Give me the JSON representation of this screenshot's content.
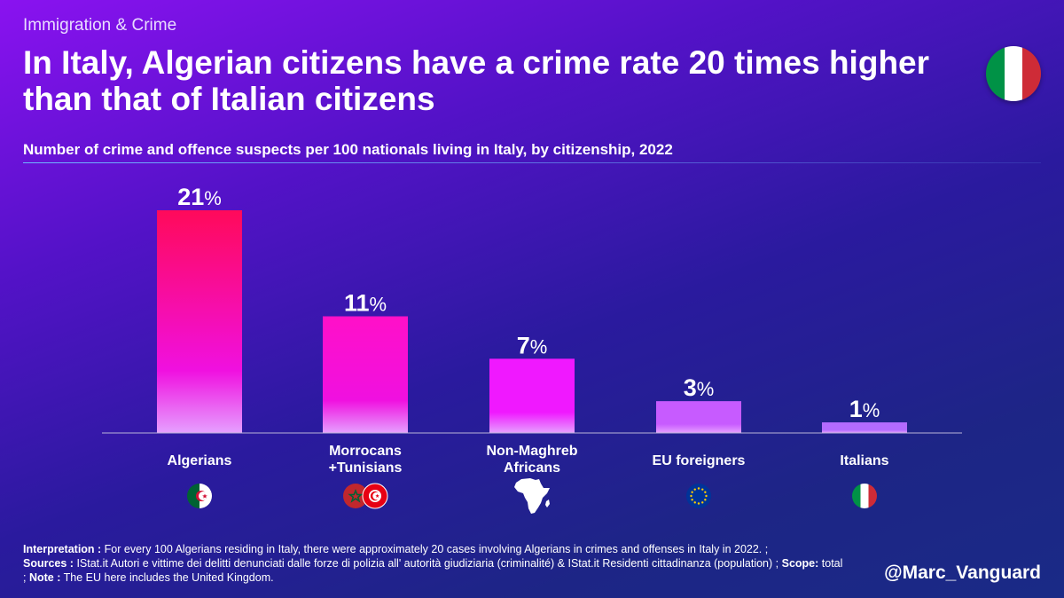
{
  "header": {
    "category": "Immigration & Crime",
    "title": "In Italy, Algerian citizens have a crime rate 20 times higher than that of Italian citizens",
    "subtitle": "Number of crime and offence suspects per 100 nationals living in Italy, by citizenship, 2022"
  },
  "icons": {
    "header_flag": "italy-flag-icon",
    "category_icons": [
      "algeria-flag-icon",
      "morocco-tunisia-flags-icon",
      "africa-map-icon",
      "eu-flag-icon",
      "italy-flag-icon"
    ]
  },
  "colors": {
    "bar_top_1": "#ff0a5a",
    "bar_top_2": "#ff10c8",
    "bar_top_3": "#f018ff",
    "bar_top_4": "#c75bff",
    "bar_top_5": "#b36bff",
    "bar_bottom": "#e6a0ff"
  },
  "chart_data": {
    "type": "bar",
    "title": "Number of crime and offence suspects per 100 nationals living in Italy, by citizenship, 2022",
    "categories": [
      "Algerians",
      "Morrocans\n+Tunisians",
      "Non-Maghreb\nAfricans",
      "EU foreigners",
      "Italians"
    ],
    "values": [
      21,
      11,
      7,
      3,
      1
    ],
    "value_labels": [
      "21",
      "11",
      "7",
      "3",
      "1"
    ],
    "unit": "%",
    "xlabel": "",
    "ylabel": "",
    "ylim": [
      0,
      21
    ],
    "grid": false
  },
  "footer": {
    "interpretation_label": "Interpretation :",
    "interpretation_text": " For every 100 Algerians residing in Italy, there were approximately 20 cases involving Algerians in crimes and offenses in Italy in 2022. ;",
    "sources_label": "Sources :",
    "sources_text": " IStat.it Autori e vittime dei delitti denunciati dalle forze di polizia all' autorità giudiziaria (criminalité) & IStat.it Residenti cittadinanza (population) ;",
    "scope_label": "Scope:",
    "scope_text": " total ;",
    "note_label": "Note :",
    "note_text": " The EU here includes the United Kingdom.",
    "handle": "@Marc_Vanguard"
  }
}
